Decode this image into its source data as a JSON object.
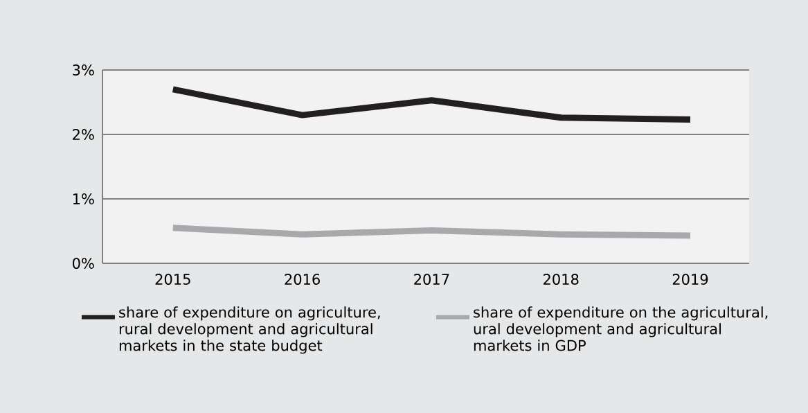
{
  "chart_data": {
    "type": "line",
    "categories": [
      "2015",
      "2016",
      "2017",
      "2018",
      "2019"
    ],
    "series": [
      {
        "name": "share of expenditure on agriculture, rural development and agricultural markets in the state budget",
        "color": "#231f20",
        "values": [
          2.7,
          2.3,
          2.53,
          2.26,
          2.23
        ]
      },
      {
        "name": "share of expenditure on the agricultural, ural development and agricultural markets in GDP",
        "color": "#a7a9ac",
        "values": [
          0.55,
          0.45,
          0.51,
          0.45,
          0.43
        ]
      }
    ],
    "ylim": [
      0,
      3
    ],
    "yticks": [
      {
        "value": 0,
        "label": "0%"
      },
      {
        "value": 1,
        "label": "1%"
      },
      {
        "value": 2,
        "label": "2%"
      },
      {
        "value": 3,
        "label": "3%"
      }
    ],
    "grid": "y",
    "legend": "bottom",
    "marker": "none",
    "line_style": "solid"
  }
}
